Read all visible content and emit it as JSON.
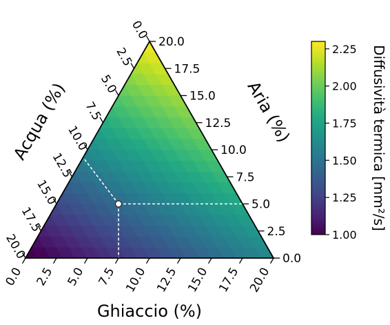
{
  "chart_data": {
    "type": "ternary-heatmap",
    "axes": {
      "bottom": {
        "label": "Ghiaccio (%)",
        "ticks": [
          "0.0",
          "2.5",
          "5.0",
          "7.5",
          "10.0",
          "12.5",
          "15.0",
          "17.5",
          "20.0"
        ],
        "range": [
          0,
          20
        ]
      },
      "right": {
        "label": "Aria (%)",
        "ticks": [
          "0.0",
          "2.5",
          "5.0",
          "7.5",
          "10.0",
          "12.5",
          "15.0",
          "17.5",
          "20.0"
        ],
        "range": [
          0,
          20
        ]
      },
      "left": {
        "label": "Acqua (%)",
        "ticks": [
          "0.0",
          "2.5",
          "5.0",
          "7.5",
          "10.0",
          "12.5",
          "15.0",
          "17.5",
          "20.0"
        ],
        "range": [
          0,
          20
        ]
      }
    },
    "grid": false,
    "highlighted_point": {
      "ghiaccio": 5,
      "aria": 5,
      "acqua": 10
    },
    "colorbar": {
      "label": "Diffusività termica [mm²/s]",
      "ticks": [
        "1.00",
        "1.25",
        "1.50",
        "1.75",
        "2.00",
        "2.25"
      ],
      "min": 1.0,
      "max": 2.3,
      "colormap": "viridis"
    },
    "surface": {
      "values_at_vertices": {
        "aria_100": 2.3,
        "acqua_100": 0.95,
        "ghiaccio_100": 1.6
      }
    }
  }
}
